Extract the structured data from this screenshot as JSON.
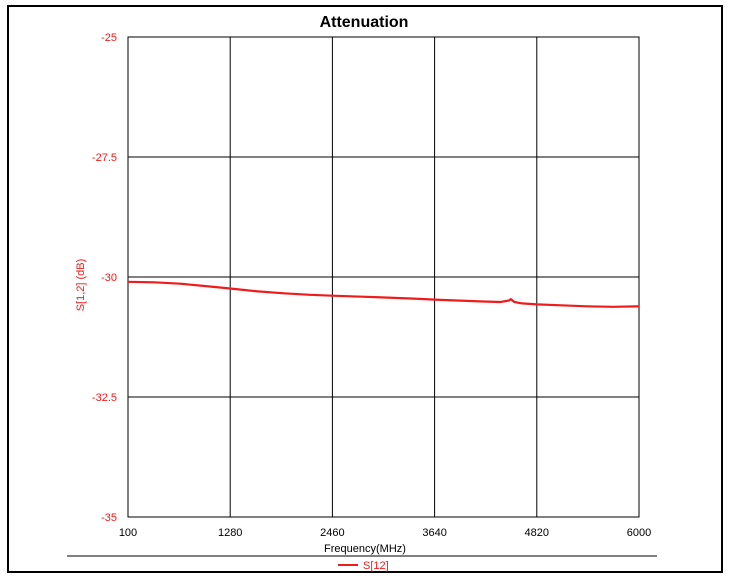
{
  "chart_data": {
    "type": "line",
    "title": "Attenuation",
    "xlabel": "Frequency(MHz)",
    "ylabel": "S[1,2] (dB)",
    "xlim": [
      100,
      6000
    ],
    "ylim": [
      -35,
      -25
    ],
    "x_ticks": [
      100,
      1280,
      2460,
      3640,
      4820,
      6000
    ],
    "x_tick_labels": [
      "100",
      "1280",
      "2460",
      "3640",
      "4820",
      "6000"
    ],
    "y_ticks": [
      -25,
      -27.5,
      -30,
      -32.5,
      -35
    ],
    "y_tick_labels": [
      "-25",
      "-27.5",
      "-30",
      "-32.5",
      "-35"
    ],
    "grid": true,
    "legend_position": "bottom-center",
    "series": [
      {
        "name": "S[12]",
        "color": "#ee1c1c",
        "x": [
          100,
          400,
          700,
          1000,
          1280,
          1600,
          1900,
          2200,
          2460,
          2800,
          3100,
          3400,
          3640,
          3900,
          4200,
          4400,
          4500,
          4520,
          4560,
          4650,
          4820,
          5100,
          5400,
          5700,
          6000
        ],
        "y": [
          -30.1,
          -30.11,
          -30.14,
          -30.19,
          -30.24,
          -30.3,
          -30.34,
          -30.37,
          -30.39,
          -30.41,
          -30.43,
          -30.45,
          -30.47,
          -30.49,
          -30.51,
          -30.52,
          -30.49,
          -30.46,
          -30.52,
          -30.55,
          -30.57,
          -30.59,
          -30.61,
          -30.62,
          -30.61
        ]
      }
    ]
  }
}
